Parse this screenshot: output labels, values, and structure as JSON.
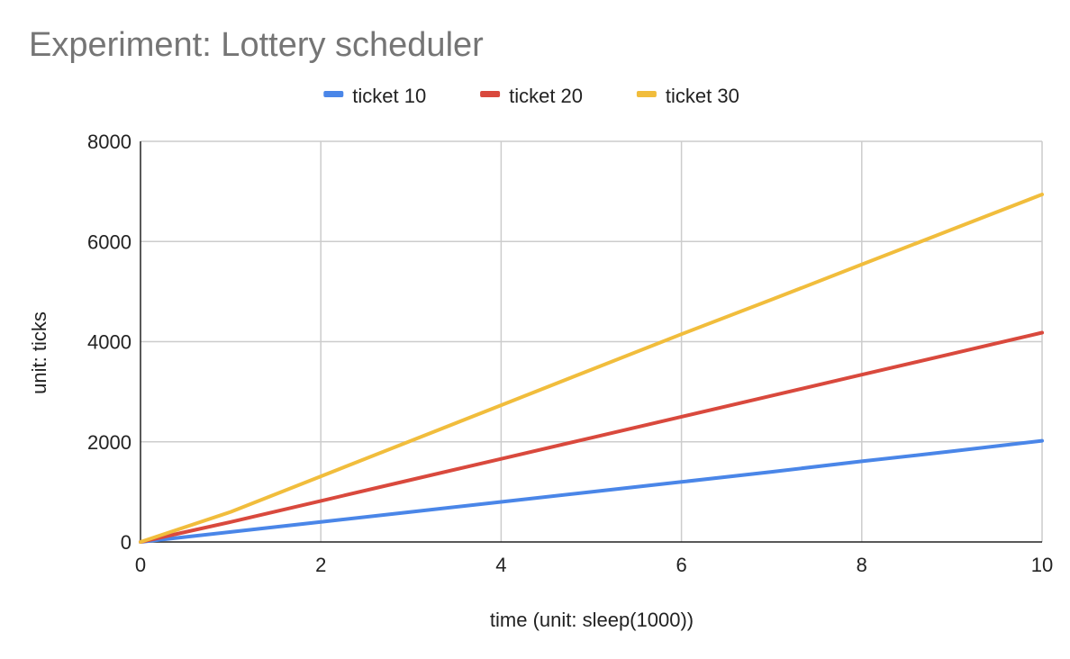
{
  "chart_data": {
    "type": "line",
    "title": "Experiment: Lottery scheduler",
    "xlabel": "time (unit: sleep(1000))",
    "ylabel": "unit: ticks",
    "xlim": [
      0,
      10
    ],
    "ylim": [
      0,
      8000
    ],
    "xticks": [
      "0",
      "2",
      "4",
      "6",
      "8",
      "10"
    ],
    "yticks": [
      "0",
      "2000",
      "4000",
      "6000",
      "8000"
    ],
    "grid": true,
    "legend_position": "top",
    "x": [
      0,
      1,
      2,
      3,
      4,
      5,
      6,
      7,
      8,
      9,
      10
    ],
    "series": [
      {
        "name": "ticket 10",
        "color": "#4a86e8",
        "values": [
          0,
          200,
          400,
          600,
          800,
          1000,
          1200,
          1400,
          1610,
          1810,
          2020
        ]
      },
      {
        "name": "ticket 20",
        "color": "#d9493d",
        "values": [
          0,
          400,
          820,
          1240,
          1660,
          2080,
          2500,
          2920,
          3340,
          3760,
          4180
        ]
      },
      {
        "name": "ticket 30",
        "color": "#f1bd3c",
        "values": [
          0,
          600,
          1310,
          2020,
          2730,
          3440,
          4150,
          4840,
          5540,
          6240,
          6940
        ]
      }
    ]
  }
}
